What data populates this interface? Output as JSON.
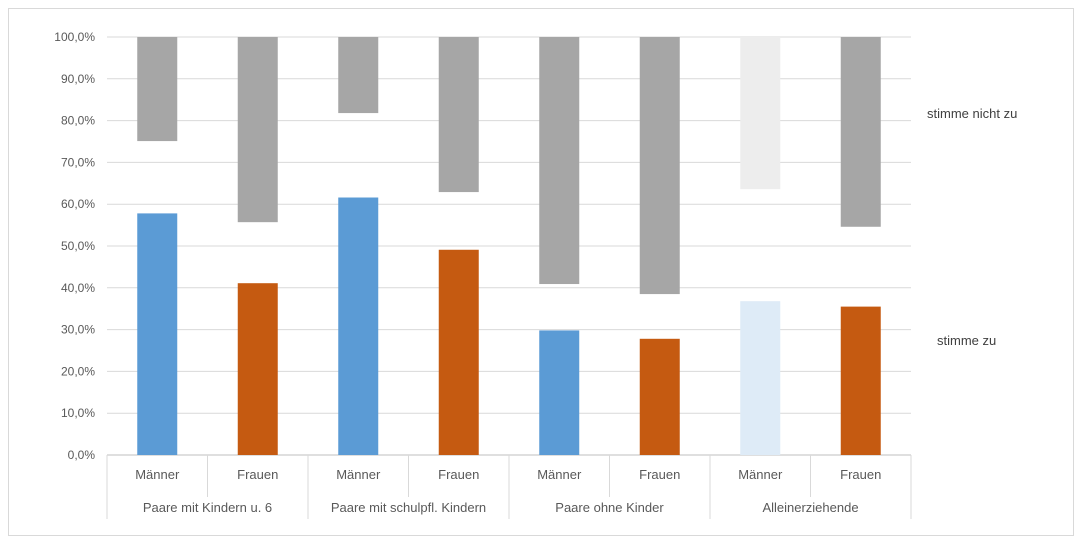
{
  "chart_data": {
    "type": "bar",
    "subtype": "floating-bar",
    "title": "",
    "xlabel": "",
    "ylabel": "",
    "ylim": [
      0,
      100
    ],
    "y_ticks": [
      "0,0%",
      "10,0%",
      "20,0%",
      "30,0%",
      "40,0%",
      "50,0%",
      "60,0%",
      "70,0%",
      "80,0%",
      "90,0%",
      "100,0%"
    ],
    "grid": true,
    "groups": [
      "Paare mit Kindern u. 6",
      "Paare mit schulpfl. Kindern",
      "Paare ohne Kinder",
      "Alleinerziehende"
    ],
    "categories": [
      "Männer",
      "Frauen",
      "Männer",
      "Frauen",
      "Männer",
      "Frauen",
      "Männer",
      "Frauen"
    ],
    "series": [
      {
        "name": "stimme zu",
        "values": [
          57.8,
          41.1,
          61.6,
          49.1,
          29.8,
          27.8,
          36.8,
          35.5
        ],
        "colors": [
          "#5b9bd5",
          "#c55a11",
          "#5b9bd5",
          "#c55a11",
          "#5b9bd5",
          "#c55a11",
          "#deebf7",
          "#c55a11"
        ]
      },
      {
        "name": "stimme nicht zu",
        "range_from": [
          75.1,
          55.7,
          81.8,
          62.9,
          40.9,
          38.5,
          63.6,
          54.6
        ],
        "range_to": [
          100,
          100,
          100,
          100,
          100,
          100,
          100,
          100
        ],
        "colors": [
          "#a6a6a6",
          "#a6a6a6",
          "#a6a6a6",
          "#a6a6a6",
          "#a6a6a6",
          "#a6a6a6",
          "#ededed",
          "#a6a6a6"
        ]
      }
    ],
    "legend": {
      "placement": "right",
      "labels": [
        "stimme nicht zu",
        "stimme zu"
      ]
    }
  }
}
